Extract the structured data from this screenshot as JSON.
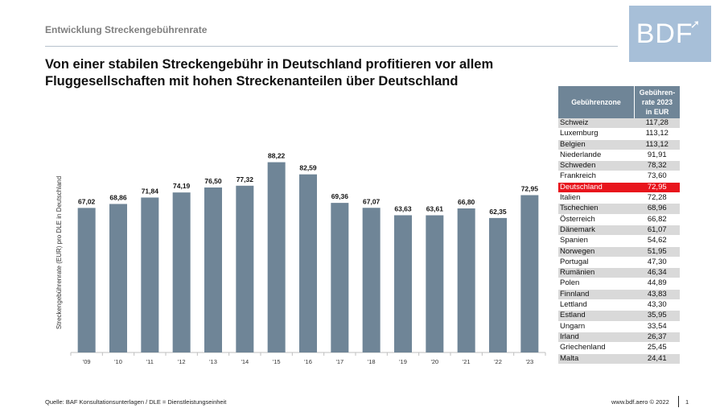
{
  "header": {
    "kicker": "Entwicklung Streckengebührenrate",
    "logo_text": "BDF",
    "headline_line1": "Von einer stabilen Streckengebühr in Deutschland profitieren vor allem",
    "headline_line2": "Fluggesellschaften mit hohen Streckenanteilen über Deutschland"
  },
  "colors": {
    "bar": "#6f8597",
    "highlight": "#e8141c",
    "logo": "#a7bfd8"
  },
  "chart_data": {
    "type": "bar",
    "categories": [
      "'09",
      "'10",
      "'11",
      "'12",
      "'13",
      "'14",
      "'15",
      "'16",
      "'17",
      "'18",
      "'19",
      "'20",
      "'21",
      "'22",
      "'23"
    ],
    "values": [
      67.02,
      68.86,
      71.84,
      74.19,
      76.5,
      77.32,
      88.22,
      82.59,
      69.36,
      67.07,
      63.63,
      63.61,
      66.8,
      62.35,
      72.95
    ],
    "value_labels": [
      "67,02",
      "68,86",
      "71,84",
      "74,19",
      "76,50",
      "77,32",
      "88,22",
      "82,59",
      "69,36",
      "67,07",
      "63,63",
      "63,61",
      "66,80",
      "62,35",
      "72,95"
    ],
    "ylabel": "Streckengebührenrate (EUR) pro DLE in Deutschland",
    "ylim": [
      0,
      100
    ],
    "grid": false
  },
  "table": {
    "header_zone": "Gebührenzone",
    "header_rate_lines": [
      "Gebühren-",
      "rate 2023",
      "in EUR"
    ],
    "highlight": "Deutschland",
    "rows": [
      {
        "zone": "Schweiz",
        "rate": "117,28"
      },
      {
        "zone": "Luxemburg",
        "rate": "113,12"
      },
      {
        "zone": "Belgien",
        "rate": "113,12"
      },
      {
        "zone": "Niederlande",
        "rate": "91,91"
      },
      {
        "zone": "Schweden",
        "rate": "78,32"
      },
      {
        "zone": "Frankreich",
        "rate": "73,60"
      },
      {
        "zone": "Deutschland",
        "rate": "72,95"
      },
      {
        "zone": "Italien",
        "rate": "72,28"
      },
      {
        "zone": "Tschechien",
        "rate": "68,96"
      },
      {
        "zone": "Österreich",
        "rate": "66,82"
      },
      {
        "zone": "Dänemark",
        "rate": "61,07"
      },
      {
        "zone": "Spanien",
        "rate": "54,62"
      },
      {
        "zone": "Norwegen",
        "rate": "51,95"
      },
      {
        "zone": "Portugal",
        "rate": "47,30"
      },
      {
        "zone": "Rumänien",
        "rate": "46,34"
      },
      {
        "zone": "Polen",
        "rate": "44,89"
      },
      {
        "zone": "Finnland",
        "rate": "43,83"
      },
      {
        "zone": "Lettland",
        "rate": "43,30"
      },
      {
        "zone": "Estland",
        "rate": "35,95"
      },
      {
        "zone": "Ungarn",
        "rate": "33,54"
      },
      {
        "zone": "Irland",
        "rate": "26,37"
      },
      {
        "zone": "Griechenland",
        "rate": "25,45"
      },
      {
        "zone": "Malta",
        "rate": "24,41"
      }
    ]
  },
  "footer": {
    "source": "Quelle: BAF Konsultationsunterlagen / DLE = Dienstleistungseinheit",
    "site": "www.bdf.aero © 2022",
    "page": "1"
  }
}
